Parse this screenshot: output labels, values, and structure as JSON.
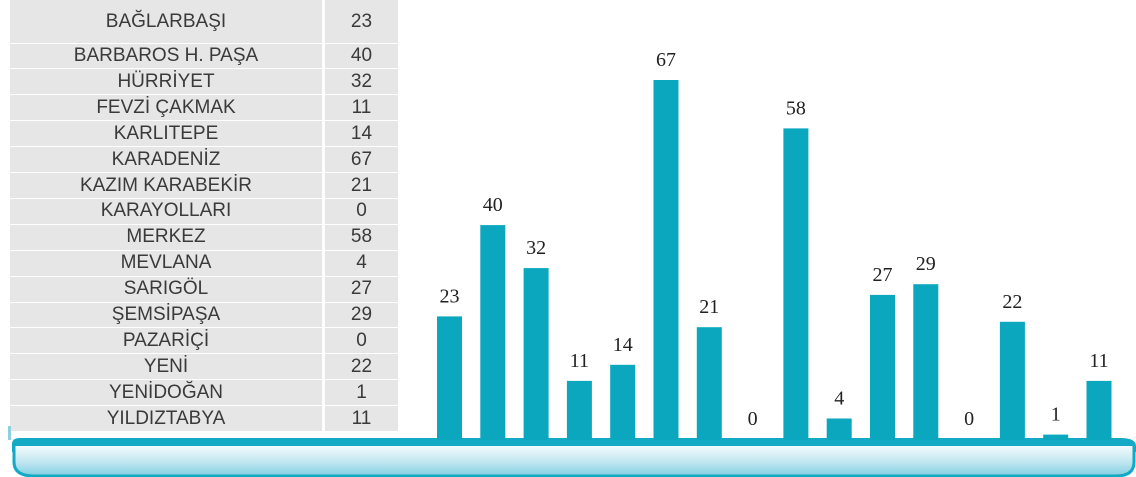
{
  "table": {
    "rows": [
      {
        "name": "BAĞLARBAŞI",
        "value": "23"
      },
      {
        "name": "BARBAROS H. PAŞA",
        "value": "40"
      },
      {
        "name": "HÜRRİYET",
        "value": "32"
      },
      {
        "name": "FEVZİ ÇAKMAK",
        "value": "11"
      },
      {
        "name": "KARLITEPE",
        "value": "14"
      },
      {
        "name": "KARADENİZ",
        "value": "67"
      },
      {
        "name": "KAZIM KARABEKİR",
        "value": "21"
      },
      {
        "name": "KARAYOLLARI",
        "value": "0"
      },
      {
        "name": "MERKEZ",
        "value": "58"
      },
      {
        "name": "MEVLANA",
        "value": "4"
      },
      {
        "name": "SARIGÖL",
        "value": "27"
      },
      {
        "name": "ŞEMSİPAŞA",
        "value": "29"
      },
      {
        "name": "PAZARİÇİ",
        "value": "0"
      },
      {
        "name": "YENİ",
        "value": "22"
      },
      {
        "name": "YENİDOĞAN",
        "value": "1"
      },
      {
        "name": "YILDIZTABYA",
        "value": "11"
      }
    ]
  },
  "chart_data": {
    "type": "bar",
    "categories": [
      "BAĞLARBAŞI",
      "BARBAROS H. PAŞA",
      "HÜRRİYET",
      "FEVZİ ÇAKMAK",
      "KARLITEPE",
      "KARADENİZ",
      "KAZIM KARABEKİR",
      "KARAYOLLARI",
      "MERKEZ",
      "MEVLANA",
      "SARIGÖL",
      "ŞEMSİPAŞA",
      "PAZARİÇİ",
      "YENİ",
      "YENİDOĞAN",
      "YILDIZTABYA"
    ],
    "values": [
      23,
      40,
      32,
      11,
      14,
      67,
      21,
      0,
      58,
      4,
      27,
      29,
      0,
      22,
      1,
      11
    ],
    "data_labels": [
      "23",
      "40",
      "32",
      "11",
      "14",
      "67",
      "21",
      "0",
      "58",
      "4",
      "27",
      "29",
      "0",
      "22",
      "1",
      "11"
    ],
    "bar_color": "#0aa7bf",
    "ylim": [
      0,
      67
    ],
    "grid": false,
    "legend": "none"
  },
  "colors": {
    "bar": "#0aa7bf",
    "base_light": "#d9f1f7",
    "base_dark": "#14a9c4",
    "table_bg": "#e6e6e6",
    "text": "#3a3a3a",
    "label_text": "#222222"
  }
}
